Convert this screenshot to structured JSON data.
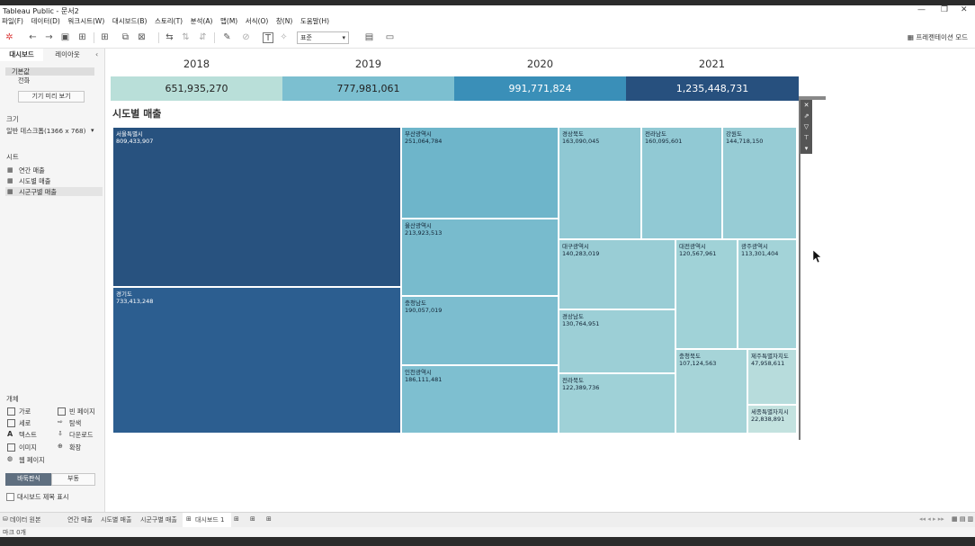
{
  "window": {
    "title": "Tableau Public - 문서2"
  },
  "menu": [
    "파일(F)",
    "데이터(D)",
    "워크시트(W)",
    "대시보드(B)",
    "스토리(T)",
    "분석(A)",
    "맵(M)",
    "서식(O)",
    "창(N)",
    "도움말(H)"
  ],
  "toolbar": {
    "fit_combo": "표준",
    "present_mode": "프레젠테이션 모드"
  },
  "left_panel": {
    "tabs": [
      "대시보드",
      "레이아웃"
    ],
    "device_items": [
      "기본값",
      "전화"
    ],
    "device_preview_button": "기기 미리 보기",
    "size_title": "크기",
    "size_value": "일반 데스크톱(1366 x 768)",
    "sheets_title": "시트",
    "sheets": [
      "연간 매출",
      "시도별 매출",
      "시군구별 매출"
    ],
    "objects_title": "개체",
    "objects": [
      "가로",
      "빈 페이지",
      "세로",
      "탐색",
      "텍스트",
      "다운로드",
      "이미지",
      "확장",
      "웹 페이지"
    ],
    "layout_toggle": [
      "바둑판식",
      "부동"
    ],
    "show_title_label": "대시보드 제목 표시"
  },
  "dashboard": {
    "years": [
      "2018",
      "2019",
      "2020",
      "2021"
    ],
    "kpis": [
      "651,935,270",
      "777,981,061",
      "991,771,824",
      "1,235,448,731"
    ],
    "kpi_colors": [
      "#b9dfd9",
      "#7cbfd0",
      "#3a8fb8",
      "#27507e"
    ],
    "treemap_title": "시도별 매출",
    "regions": [
      {
        "name": "서울특별시",
        "value": "809,433,907"
      },
      {
        "name": "경기도",
        "value": "733,413,248"
      },
      {
        "name": "부산광역시",
        "value": "251,064,784"
      },
      {
        "name": "울산광역시",
        "value": "213,923,513"
      },
      {
        "name": "충청남도",
        "value": "190,057,019"
      },
      {
        "name": "인천광역시",
        "value": "186,111,481"
      },
      {
        "name": "경상북도",
        "value": "163,090,045"
      },
      {
        "name": "전라남도",
        "value": "160,095,601"
      },
      {
        "name": "강원도",
        "value": "144,718,150"
      },
      {
        "name": "대구광역시",
        "value": "140,283,019"
      },
      {
        "name": "대전광역시",
        "value": "120,567,961"
      },
      {
        "name": "광주광역시",
        "value": "113,301,404"
      },
      {
        "name": "경상남도",
        "value": "130,764,951"
      },
      {
        "name": "전라북도",
        "value": "122,389,736"
      },
      {
        "name": "충청북도",
        "value": "107,124,563"
      },
      {
        "name": "제주특별자치도",
        "value": "47,958,611"
      },
      {
        "name": "세종특별자치시",
        "value": "22,838,891"
      }
    ]
  },
  "bottom_tabs": [
    "데이터 원본",
    "연간 매출",
    "시도별 매출",
    "시군구별 매출",
    "대시보드 1"
  ],
  "status": {
    "text": "마크 0개"
  },
  "colors": {
    "dark": "#27507e",
    "mid": "#6fb5ca",
    "light": "#a8d6d6"
  }
}
